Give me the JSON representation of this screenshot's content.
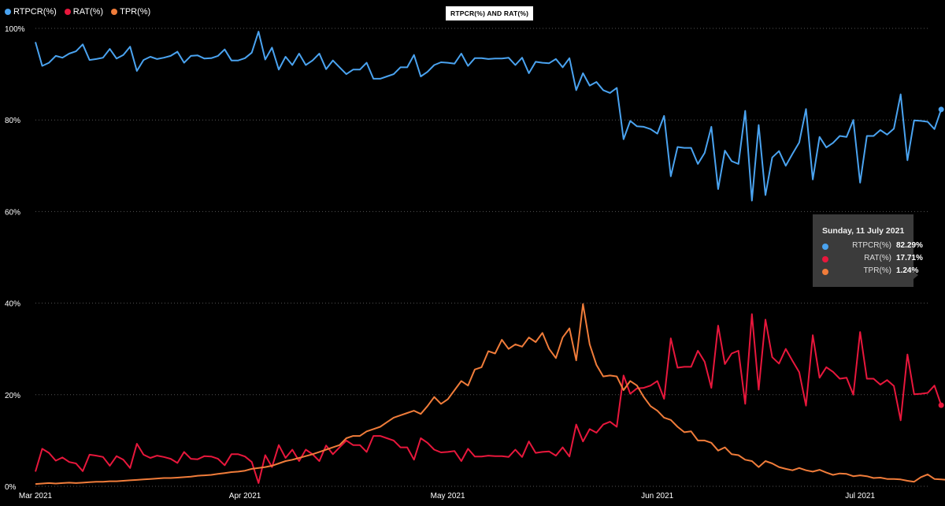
{
  "chart_data": {
    "type": "line",
    "title": "RTPCR(%) AND RAT(%)",
    "xlabel": "",
    "ylabel": "",
    "ylim": [
      0,
      100
    ],
    "y_ticks": [
      "0%",
      "20%",
      "40%",
      "60%",
      "80%",
      "100%"
    ],
    "x_ticks": [
      "Mar 2021",
      "Apr 2021",
      "May 2021",
      "Jun 2021",
      "Jul 2021"
    ],
    "start_date": "2021-03-01",
    "end_date": "2021-07-11",
    "grid": true,
    "legend_position": "top-left",
    "series": [
      {
        "name": "RTPCR(%)",
        "color": "#4aa3f0",
        "values": [
          97,
          91.8,
          92.5,
          94,
          93.6,
          94.5,
          95,
          96.5,
          93.1,
          93.3,
          93.6,
          95.5,
          93.4,
          94.2,
          96,
          90.7,
          93.1,
          93.8,
          93.3,
          93.6,
          94,
          94.9,
          92.5,
          94,
          94.1,
          93.4,
          93.5,
          94,
          95.4,
          93,
          93,
          93.5,
          94.7,
          99.3,
          93.2,
          95.8,
          91,
          93.8,
          92,
          94.5,
          92,
          93,
          94.5,
          91.1,
          93,
          91.5,
          90,
          91,
          91,
          92.5,
          89,
          89,
          89.5,
          90,
          91.5,
          91.5,
          94.2,
          89.5,
          90.5,
          92,
          92.6,
          92.5,
          92.3,
          94.5,
          91.8,
          93.5,
          93.5,
          93.3,
          93.4,
          93.4,
          93.6,
          92,
          93.6,
          90.2,
          92.7,
          92.5,
          92.4,
          93.3,
          91.5,
          93.5,
          86.5,
          90.2,
          87.5,
          88.3,
          86.5,
          85.9,
          87,
          75.8,
          79.8,
          78.6,
          78.5,
          78,
          77,
          80.9,
          67.7,
          74.1,
          73.9,
          73.9,
          70.4,
          72.8,
          78.5,
          64.9,
          73.3,
          71,
          70.4,
          82,
          62.4,
          78.9,
          63.6,
          71.8,
          73.2,
          70,
          72.6,
          75.1,
          82.4,
          67,
          76.3,
          74,
          75,
          76.5,
          76.3,
          80,
          66.3,
          76.5,
          76.5,
          77.8,
          76.8,
          78.1,
          85.6,
          71.2,
          79.9,
          79.8,
          79.6,
          78,
          82.3
        ]
      },
      {
        "name": "RAT(%)",
        "color": "#e8173c",
        "values": [
          3.2,
          8.2,
          7.3,
          5.6,
          6.3,
          5.3,
          5,
          3.3,
          6.9,
          6.7,
          6.4,
          4.5,
          6.6,
          5.8,
          4,
          9.3,
          6.9,
          6.2,
          6.7,
          6.4,
          6,
          5.1,
          7.5,
          6,
          5.9,
          6.6,
          6.5,
          6,
          4.6,
          7,
          7,
          6.5,
          5.3,
          0.7,
          6.8,
          4.2,
          9,
          6.2,
          8,
          5.5,
          8,
          7,
          5.5,
          8.9,
          7,
          8.5,
          10,
          9,
          9,
          7.5,
          11,
          11,
          10.5,
          10,
          8.5,
          8.5,
          5.8,
          10.5,
          9.5,
          8,
          7.4,
          7.5,
          7.7,
          5.5,
          8.2,
          6.5,
          6.5,
          6.7,
          6.6,
          6.6,
          6.4,
          8,
          6.4,
          9.8,
          7.3,
          7.5,
          7.6,
          6.7,
          8.5,
          6.5,
          13.5,
          9.8,
          12.5,
          11.7,
          13.5,
          14.1,
          13,
          24.2,
          20.2,
          21.4,
          21.5,
          22,
          23,
          19.1,
          32.3,
          25.9,
          26.1,
          26.1,
          29.6,
          27.2,
          21.5,
          35.1,
          26.7,
          29,
          29.6,
          18,
          37.6,
          21.1,
          36.4,
          28.2,
          26.8,
          30,
          27.4,
          24.9,
          17.6,
          33,
          23.7,
          26,
          25,
          23.5,
          23.7,
          20,
          33.7,
          23.5,
          23.5,
          22.2,
          23.2,
          21.9,
          14.4,
          28.8,
          20.1,
          20.2,
          20.4,
          22,
          17.71
        ]
      },
      {
        "name": "TPR(%)",
        "color": "#f07c3a",
        "values": [
          0.5,
          0.6,
          0.7,
          0.6,
          0.7,
          0.8,
          0.7,
          0.8,
          0.9,
          1,
          1,
          1.1,
          1.1,
          1.2,
          1.3,
          1.4,
          1.5,
          1.6,
          1.7,
          1.8,
          1.8,
          1.9,
          2,
          2.1,
          2.3,
          2.4,
          2.5,
          2.7,
          2.9,
          3.1,
          3.2,
          3.4,
          3.8,
          4,
          4.2,
          4.5,
          5,
          5.5,
          5.8,
          6.2,
          6.6,
          7,
          7.5,
          8,
          8.5,
          9,
          10.5,
          11,
          11,
          12,
          12.5,
          13,
          14,
          15,
          15.5,
          16,
          16.5,
          15.8,
          17.5,
          19.5,
          18,
          19,
          21,
          23,
          22,
          25.5,
          26,
          29.5,
          29,
          32,
          30,
          31,
          30.5,
          32.5,
          31.5,
          33.5,
          30,
          28,
          32.5,
          34.5,
          27.5,
          39.8,
          31,
          26.5,
          24,
          24.2,
          24,
          21,
          23,
          22,
          19.5,
          17.5,
          16.5,
          15,
          14.5,
          13,
          11.8,
          12,
          10,
          10,
          9.5,
          7.8,
          8.5,
          7,
          6.8,
          5.8,
          5.5,
          4.2,
          5.5,
          5,
          4.2,
          3.8,
          3.5,
          4,
          3.5,
          3.2,
          3.6,
          3,
          2.5,
          2.8,
          2.7,
          2.2,
          2.4,
          2.2,
          1.8,
          1.9,
          1.6,
          1.6,
          1.5,
          1.2,
          1,
          2,
          2.6,
          1.6,
          1.5,
          1.4,
          1.4,
          1.24
        ]
      }
    ]
  },
  "tooltip": {
    "title": "Sunday, 11 July 2021",
    "rows": [
      {
        "name": "RTPCR(%)",
        "value": "82.29%",
        "color": "#4aa3f0"
      },
      {
        "name": "RAT(%)",
        "value": "17.71%",
        "color": "#e8173c"
      },
      {
        "name": "TPR(%)",
        "value": "1.24%",
        "color": "#f07c3a"
      }
    ]
  }
}
